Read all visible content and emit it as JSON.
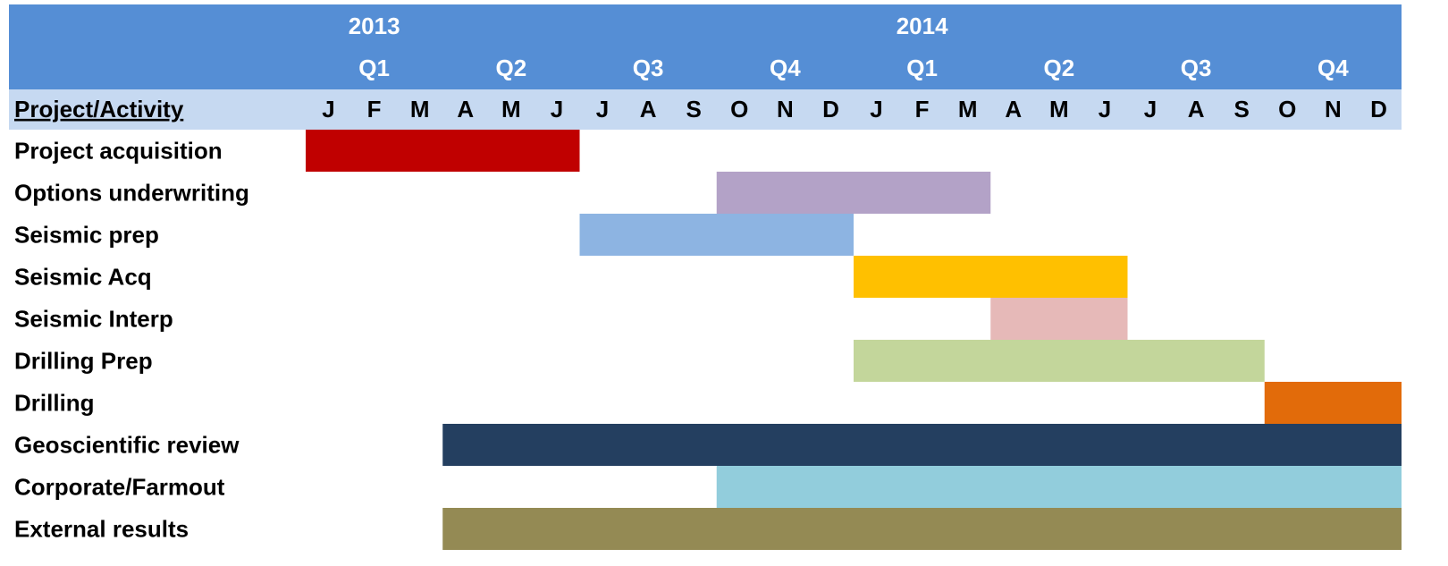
{
  "chart_data": {
    "type": "gantt",
    "column_header": "Project/Activity",
    "years": [
      "2013",
      "2014"
    ],
    "quarters": [
      "Q1",
      "Q2",
      "Q3",
      "Q4",
      "Q1",
      "Q2",
      "Q3",
      "Q4"
    ],
    "months": [
      "J",
      "F",
      "M",
      "A",
      "M",
      "J",
      "J",
      "A",
      "S",
      "O",
      "N",
      "D",
      "J",
      "F",
      "M",
      "A",
      "M",
      "J",
      "J",
      "A",
      "S",
      "O",
      "N",
      "D"
    ],
    "tasks": [
      {
        "name": "Project acquisition",
        "start": 0,
        "end": 6,
        "color": "#c00000"
      },
      {
        "name": "Options underwriting",
        "start": 9,
        "end": 15,
        "color": "#b3a2c7"
      },
      {
        "name": "Seismic prep",
        "start": 6,
        "end": 12,
        "color": "#8db4e2"
      },
      {
        "name": "Seismic Acq",
        "start": 12,
        "end": 18,
        "color": "#ffc000"
      },
      {
        "name": "Seismic Interp",
        "start": 15,
        "end": 18,
        "color": "#e6b9b8"
      },
      {
        "name": "Drilling Prep",
        "start": 12,
        "end": 21,
        "color": "#c3d69b"
      },
      {
        "name": "Drilling",
        "start": 21,
        "end": 24,
        "color": "#e26b0a"
      },
      {
        "name": "Geoscientific review",
        "start": 3,
        "end": 24,
        "color": "#243f60"
      },
      {
        "name": "Corporate/Farmout",
        "start": 9,
        "end": 24,
        "color": "#92cddc"
      },
      {
        "name": "External results",
        "start": 3,
        "end": 24,
        "color": "#948a54"
      }
    ]
  }
}
